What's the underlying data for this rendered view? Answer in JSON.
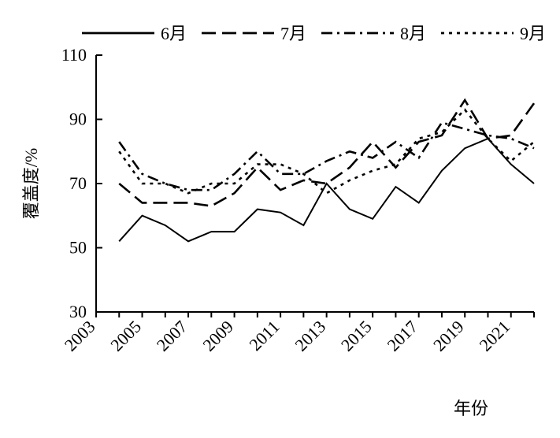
{
  "chart_data": {
    "type": "line",
    "title": "",
    "xlabel": "年份",
    "ylabel": "覆盖度/%",
    "xlim": [
      2003,
      2022
    ],
    "ylim": [
      30,
      110
    ],
    "yticks": [
      30,
      50,
      70,
      90,
      110
    ],
    "xtick_labels": [
      "2003",
      "2005",
      "2007",
      "2009",
      "2011",
      "2013",
      "2015",
      "2017",
      "2019",
      "2021"
    ],
    "x": [
      2004,
      2005,
      2006,
      2007,
      2008,
      2009,
      2010,
      2011,
      2012,
      2013,
      2014,
      2015,
      2016,
      2017,
      2018,
      2019,
      2020,
      2021,
      2022
    ],
    "legend_position": "top",
    "grid": false,
    "series": [
      {
        "name": "6月",
        "style": "solid",
        "values": [
          52,
          60,
          57,
          52,
          55,
          55,
          62,
          61,
          57,
          70,
          62,
          59,
          69,
          64,
          74,
          81,
          84,
          76,
          70
        ]
      },
      {
        "name": "7月",
        "style": "dashed",
        "values": [
          70,
          64,
          64,
          64,
          63,
          67,
          75,
          68,
          71,
          70,
          75,
          83,
          75,
          83,
          85,
          96,
          84,
          85,
          95
        ]
      },
      {
        "name": "8月",
        "style": "dashdot",
        "values": [
          83,
          73,
          70,
          68,
          68,
          73,
          80,
          73,
          73,
          77,
          80,
          78,
          83,
          78,
          89,
          87,
          85,
          84,
          81
        ]
      },
      {
        "name": "9月",
        "style": "dotted",
        "values": [
          80,
          70,
          70,
          67,
          70,
          70,
          76,
          76,
          73,
          67,
          71,
          74,
          76,
          84,
          86,
          93,
          84,
          77,
          83
        ]
      }
    ]
  }
}
